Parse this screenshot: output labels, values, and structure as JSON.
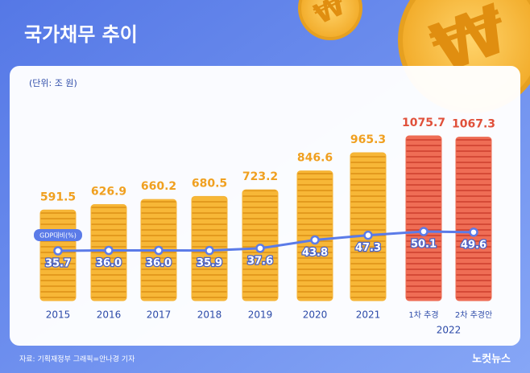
{
  "chart_data": {
    "type": "bar",
    "title": "국가채무 추이",
    "subtitle": "(단위: 조 원)",
    "categories": [
      "2015",
      "2016",
      "2017",
      "2018",
      "2019",
      "2020",
      "2021",
      "1차 추경",
      "2차 추경안"
    ],
    "category_group": "2022",
    "values": [
      591.5,
      626.9,
      660.2,
      680.5,
      723.2,
      846.6,
      965.3,
      1075.7,
      1067.3
    ],
    "colors": [
      "#f5b335",
      "#f5b335",
      "#f5b335",
      "#f5b335",
      "#f5b335",
      "#f5b335",
      "#f5b335",
      "#ec6a52",
      "#ec6a52"
    ],
    "line": {
      "type": "line",
      "name": "GDP대비(%)",
      "color": "#5b7be8",
      "values": [
        35.7,
        36.0,
        36.0,
        35.9,
        37.6,
        43.8,
        47.3,
        50.1,
        49.6
      ],
      "value_labels": [
        "35.7",
        "36.0",
        "36.0",
        "35.9",
        "37.6",
        "43.8",
        "47.3",
        "50.1",
        "49.6"
      ]
    }
  },
  "source": "자료: 기획재정부   그래픽=안나경 기자",
  "logo": "노컷뉴스"
}
